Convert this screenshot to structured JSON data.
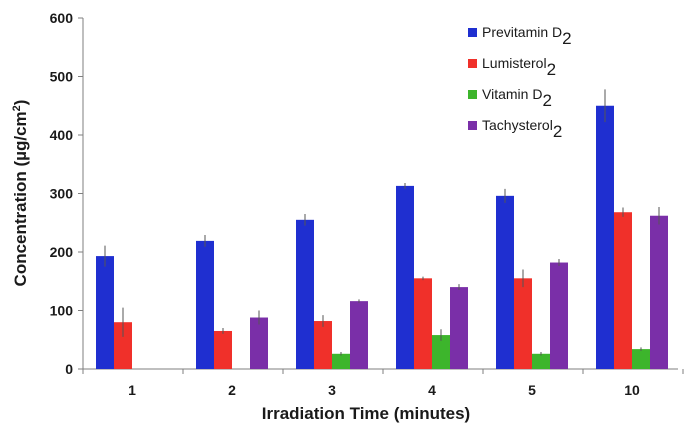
{
  "chart_data": {
    "type": "bar",
    "title": "",
    "xlabel": "Irradiation Time (minutes)",
    "ylabel": "Concentration (µg/cm²)",
    "ylim": [
      0,
      600
    ],
    "yticks": [
      "0",
      "100",
      "200",
      "300",
      "400",
      "500",
      "600"
    ],
    "categories": [
      "1",
      "2",
      "3",
      "4",
      "5",
      "10"
    ],
    "grid": false,
    "legend_position": "top-right",
    "series": [
      {
        "name": "Previtamin D2",
        "name_base": "Previtamin D",
        "name_sub": "2",
        "color": "#1F2FD0",
        "values": [
          193,
          219,
          255,
          313,
          296,
          450
        ],
        "errors": [
          18,
          10,
          10,
          5,
          12,
          28
        ]
      },
      {
        "name": "Lumisterol2",
        "name_base": "Lumisterol",
        "name_sub": "2",
        "color": "#F0302A",
        "values": [
          80,
          65,
          82,
          155,
          155,
          268
        ],
        "errors": [
          25,
          5,
          10,
          3,
          15,
          8
        ]
      },
      {
        "name": "Vitamin D2",
        "name_base": "Vitamin D",
        "name_sub": "2",
        "color": "#3DB52C",
        "values": [
          null,
          null,
          26,
          58,
          26,
          34
        ],
        "errors": [
          null,
          null,
          3,
          10,
          3,
          3
        ]
      },
      {
        "name": "Tachysterol2",
        "name_base": "Tachysterol",
        "name_sub": "2",
        "color": "#7A2FA8",
        "values": [
          null,
          88,
          116,
          140,
          182,
          262
        ],
        "errors": [
          null,
          12,
          3,
          5,
          6,
          15
        ]
      }
    ]
  }
}
